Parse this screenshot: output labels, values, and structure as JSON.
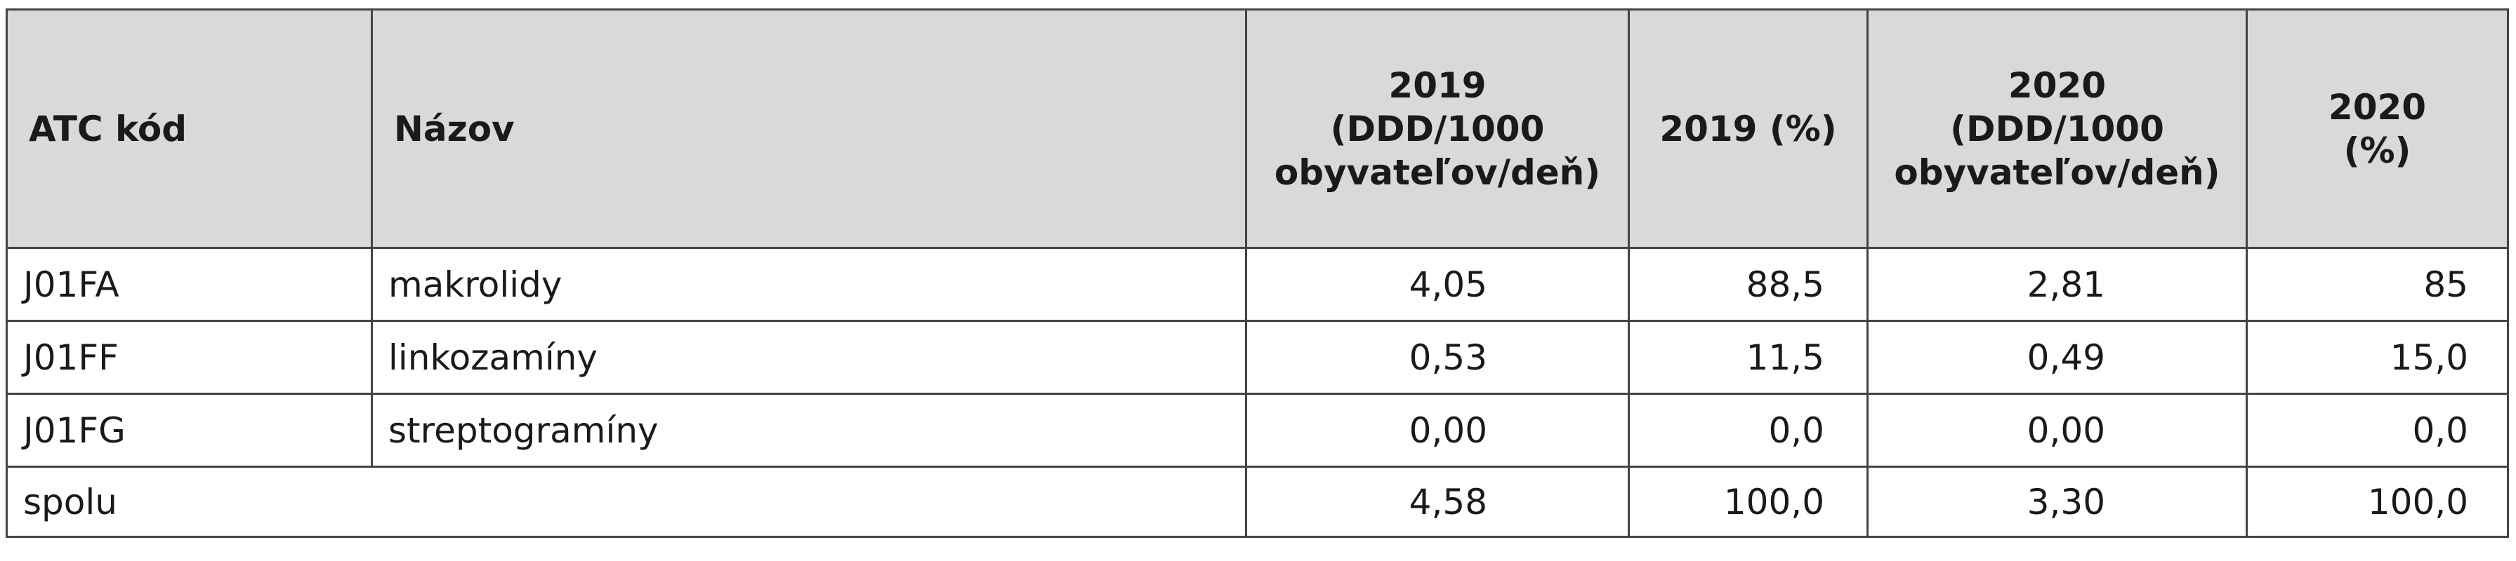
{
  "table": {
    "headers": {
      "code": "ATC kód",
      "name": "Názov",
      "ddd_2019": [
        "2019",
        "(DDD/1000",
        "obyvateľov/deň)"
      ],
      "pct_2019": "2019 (%)",
      "ddd_2020": [
        "2020",
        "(DDD/1000",
        "obyvateľov/deň)"
      ],
      "pct_2020": [
        "2020",
        "(%)"
      ]
    },
    "rows": [
      {
        "code": "J01FA",
        "name": "makrolidy",
        "ddd_2019": "4,05",
        "pct_2019": "88,5",
        "ddd_2020": "2,81",
        "pct_2020": "85"
      },
      {
        "code": "J01FF",
        "name": "linkozamíny",
        "ddd_2019": "0,53",
        "pct_2019": "11,5",
        "ddd_2020": "0,49",
        "pct_2020": "15,0"
      },
      {
        "code": "J01FG",
        "name": "streptogramíny",
        "ddd_2019": "0,00",
        "pct_2019": "0,0",
        "ddd_2020": "0,00",
        "pct_2020": "0,0"
      }
    ],
    "total": {
      "label": "spolu",
      "ddd_2019": "4,58",
      "pct_2019": "100,0",
      "ddd_2020": "3,30",
      "pct_2020": "100,0"
    }
  }
}
